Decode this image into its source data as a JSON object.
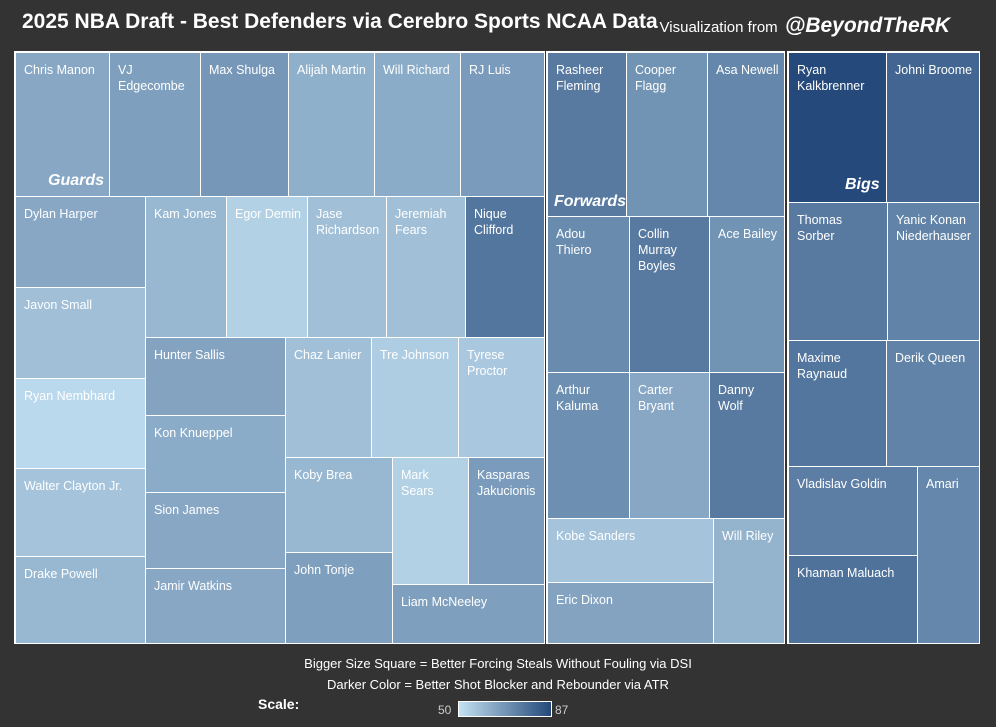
{
  "header": {
    "title": "2025 NBA Draft - Best Defenders via Cerebro Sports NCAA Data",
    "credit_prefix": "Visualization from",
    "credit_handle": "@BeyondTheRK"
  },
  "legend": {
    "size_note": "Bigger Size Square = Better Forcing Steals Without Fouling via DSI",
    "color_note": "Darker Color = Better Shot Blocker and Rebounder via ATR",
    "scale_label": "Scale:",
    "scale_min": "50",
    "scale_max": "87",
    "color_low": "#c3e1f2",
    "color_high": "#24497a"
  },
  "chart_data": {
    "type": "treemap",
    "title": "2025 NBA Draft - Best Defenders via Cerebro Sports NCAA Data",
    "size_metric": "Forcing Steals Without Fouling (DSI)",
    "color_metric": "Shot Blocking and Rebounding (ATR)",
    "color_range": [
      50,
      87
    ],
    "groups": [
      {
        "name": "Guards",
        "players": [
          {
            "name": "Chris Manon",
            "atr": 64
          },
          {
            "name": "VJ Edgecombe",
            "atr": 66
          },
          {
            "name": "Max Shulga",
            "atr": 68
          },
          {
            "name": "Alijah Martin",
            "atr": 62
          },
          {
            "name": "Will Richard",
            "atr": 63
          },
          {
            "name": "RJ Luis",
            "atr": 67
          },
          {
            "name": "Dylan Harper",
            "atr": 64
          },
          {
            "name": "Kam Jones",
            "atr": 60
          },
          {
            "name": "Egor Demin",
            "atr": 54
          },
          {
            "name": "Jase Richardson",
            "atr": 58
          },
          {
            "name": "Jeremiah Fears",
            "atr": 58
          },
          {
            "name": "Nique Clifford",
            "atr": 76
          },
          {
            "name": "Javon Small",
            "atr": 58
          },
          {
            "name": "Hunter Sallis",
            "atr": 65
          },
          {
            "name": "Chaz Lanier",
            "atr": 58
          },
          {
            "name": "Tre Johnson",
            "atr": 55
          },
          {
            "name": "Tyrese Proctor",
            "atr": 56
          },
          {
            "name": "Ryan Nembhard",
            "atr": 52
          },
          {
            "name": "Kon Knueppel",
            "atr": 63
          },
          {
            "name": "Koby Brea",
            "atr": 60
          },
          {
            "name": "Mark Sears",
            "atr": 54
          },
          {
            "name": "Kasparas Jakucionis",
            "atr": 67
          },
          {
            "name": "Walter Clayton Jr.",
            "atr": 57
          },
          {
            "name": "Sion James",
            "atr": 64
          },
          {
            "name": "John Tonje",
            "atr": 66
          },
          {
            "name": "Drake Powell",
            "atr": 60
          },
          {
            "name": "Jamir Watkins",
            "atr": 64
          },
          {
            "name": "Liam McNeeley",
            "atr": 66
          }
        ]
      },
      {
        "name": "Forwards",
        "players": [
          {
            "name": "Rasheer Fleming",
            "atr": 75
          },
          {
            "name": "Cooper Flagg",
            "atr": 69
          },
          {
            "name": "Asa Newell",
            "atr": 72
          },
          {
            "name": "Adou Thiero",
            "atr": 71
          },
          {
            "name": "Collin Murray Boyles",
            "atr": 75
          },
          {
            "name": "Ace Bailey",
            "atr": 69
          },
          {
            "name": "Arthur Kaluma",
            "atr": 70
          },
          {
            "name": "Carter Bryant",
            "atr": 64
          },
          {
            "name": "Danny Wolf",
            "atr": 75
          },
          {
            "name": "Kobe Sanders",
            "atr": 57
          },
          {
            "name": "Will Riley",
            "atr": 61
          },
          {
            "name": "Eric Dixon",
            "atr": 65
          }
        ]
      },
      {
        "name": "Bigs",
        "players": [
          {
            "name": "Ryan Kalkbrenner",
            "atr": 87
          },
          {
            "name": "Johni Broome",
            "atr": 80
          },
          {
            "name": "Thomas Sorber",
            "atr": 75
          },
          {
            "name": "Yanic Konan Niederhauser",
            "atr": 73
          },
          {
            "name": "Maxime Raynaud",
            "atr": 76
          },
          {
            "name": "Derik Queen",
            "atr": 73
          },
          {
            "name": "Vladislav Goldin",
            "atr": 74
          },
          {
            "name": "Amari",
            "atr": 72
          },
          {
            "name": "Khaman Maluach",
            "atr": 77
          }
        ]
      }
    ]
  }
}
